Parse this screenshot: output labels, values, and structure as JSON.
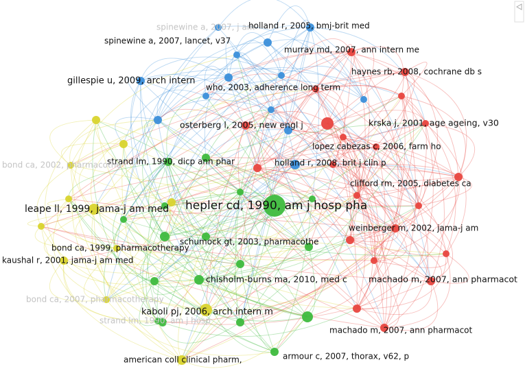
{
  "clusters": [
    {
      "color": "#e8463f"
    },
    {
      "color": "#3ebb3e"
    },
    {
      "color": "#3b8fda"
    },
    {
      "color": "#d9d42e"
    }
  ],
  "nodes": [
    {
      "label": "spinewine a, 2007, j am",
      "cluster": 2,
      "faded": true
    },
    {
      "label": "holland r, 2005, bmj-brit med",
      "cluster": 2,
      "faded": false
    },
    {
      "label": "spinewine a, 2007, lancet, v37",
      "cluster": 2,
      "faded": false
    },
    {
      "label": "murray md, 2007, ann intern me",
      "cluster": 0,
      "faded": false
    },
    {
      "label": "haynes rb, 2008, cochrane db s",
      "cluster": 0,
      "faded": false
    },
    {
      "label": "gillespie u, 2009, arch intern",
      "cluster": 2,
      "faded": false
    },
    {
      "label": "who, 2003, adherence long term",
      "cluster": 2,
      "faded": false
    },
    {
      "label": "osterberg l, 2005, new engl j",
      "cluster": 0,
      "faded": false
    },
    {
      "label": "krska j, 2001, age ageing, v30",
      "cluster": 0,
      "faded": false
    },
    {
      "label": "lopez cabezas c, 2006, farm ho",
      "cluster": 0,
      "faded": false
    },
    {
      "label": "strand lm, 1990, dicp ann phar",
      "cluster": 1,
      "faded": false
    },
    {
      "label": "holland r, 2008, brit j clin p",
      "cluster": 2,
      "faded": false
    },
    {
      "label": "bond ca, 2002, pharmacothe",
      "cluster": 3,
      "faded": true
    },
    {
      "label": "clifford rm, 2005, diabetes ca",
      "cluster": 0,
      "faded": false
    },
    {
      "label": "hepler cd, 1990, am j hosp pha",
      "cluster": 1,
      "faded": false
    },
    {
      "label": "leape ll, 1999, jama-j am med",
      "cluster": 3,
      "faded": false
    },
    {
      "label": "weinberger m, 2002, jama-j am",
      "cluster": 0,
      "faded": false
    },
    {
      "label": "schumock gt, 2003, pharmacothe",
      "cluster": 1,
      "faded": false
    },
    {
      "label": "bond ca, 1999, pharmacotherapy",
      "cluster": 3,
      "faded": false
    },
    {
      "label": "kaushal r, 2001, jama-j am med",
      "cluster": 3,
      "faded": false
    },
    {
      "label": "chisholm-burns ma, 2010, med c",
      "cluster": 1,
      "faded": false
    },
    {
      "label": "machado m, 2007, ann pharmacot",
      "cluster": 0,
      "faded": false
    },
    {
      "label": "bond ca, 2007, pharmacotherapy",
      "cluster": 3,
      "faded": true
    },
    {
      "label": "kaboli pj, 2006, arch intern m",
      "cluster": 3,
      "faded": false
    },
    {
      "label": "strand lm, 1990, am j hosp",
      "cluster": 1,
      "faded": true
    },
    {
      "label": "machado m, 2007, ann pharmacot",
      "cluster": 0,
      "faded": false
    },
    {
      "label": "american coll clinical pharm,",
      "cluster": 3,
      "faded": false
    },
    {
      "label": "armour c, 2007, thorax, v62, p",
      "cluster": 1,
      "faded": false
    }
  ]
}
